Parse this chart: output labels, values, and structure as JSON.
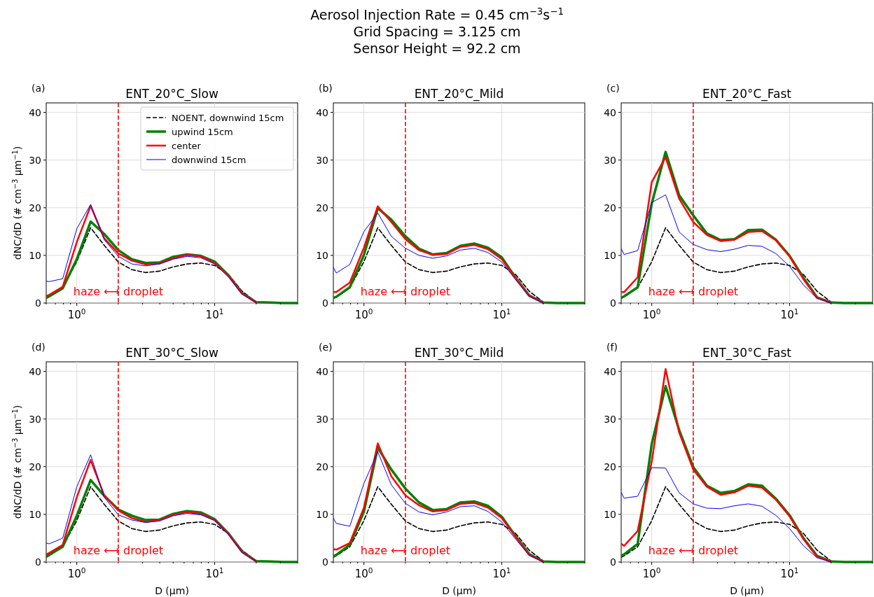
{
  "chart_data": [
    {
      "type": "line",
      "title": "ENT_20°C_Slow",
      "ylabel": "dNC/dD (# cm$^{−3}$ μm$^{−1}$)",
      "annotations": [
        "Aerosol Injection Rate = 0.45 cm$^{−3}$s$^{−1}$",
        "Grid Spacing = 3.125 cm",
        "Sensor Height = 92.2 cm",
        "(a)"
      ],
      "log": "x",
      "grid": true,
      "legend": "top right",
      "xlim": [
        0.6,
        40
      ],
      "ylim": [
        0,
        42
      ],
      "yticks": [
        0,
        10,
        20,
        30,
        40
      ],
      "xticks": [
        {
          "value": 0.6,
          "label": null
        },
        {
          "value": 0.7,
          "label": null
        },
        {
          "value": 0.8,
          "label": null
        },
        {
          "value": 0.9,
          "label": null
        },
        {
          "value": 1,
          "label": "10$^{0}$"
        },
        {
          "value": 2,
          "label": null
        },
        {
          "value": 3,
          "label": null
        },
        {
          "value": 4,
          "label": null
        },
        {
          "value": 5,
          "label": null
        },
        {
          "value": 6,
          "label": null
        },
        {
          "value": 7,
          "label": null
        },
        {
          "value": 8,
          "label": null
        },
        {
          "value": 9,
          "label": null
        },
        {
          "value": 10,
          "label": "10$^{1}$"
        },
        {
          "value": 20,
          "label": null
        },
        {
          "value": 30,
          "label": null
        },
        {
          "value": 40,
          "label": null
        }
      ],
      "ref_lines": [
        {
          "axis": "x",
          "value": 2,
          "label": "haze ⟷ droplet",
          "color": "#ff0000",
          "line_style": "dashed"
        }
      ],
      "x": [
        0.6,
        0.63,
        0.79,
        1,
        1.26,
        1.58,
        2,
        2.51,
        3.16,
        3.98,
        5.01,
        6.31,
        7.94,
        10,
        12.6,
        15.8,
        20,
        25.1,
        31.6,
        39.8
      ],
      "series": [
        {
          "name": "NOENT, downwind 15cm",
          "color": "#000000",
          "line_style": "dashed",
          "values": [
            1.0,
            1.3,
            3.2,
            8.7,
            15.8,
            12.1,
            8.6,
            7.0,
            6.4,
            6.7,
            7.6,
            8.2,
            8.4,
            7.9,
            6.0,
            2.5,
            0.2,
            null,
            null,
            null
          ]
        },
        {
          "name": "upwind 15cm",
          "color": "#008000",
          "values": [
            1.1,
            1.4,
            3.1,
            9.2,
            17.1,
            14.5,
            11.1,
            9.2,
            8.4,
            8.5,
            9.7,
            10.2,
            9.9,
            8.7,
            5.8,
            2.1,
            0.2,
            0.1,
            0,
            0
          ]
        },
        {
          "name": "center",
          "color": "#ff0000",
          "values": [
            1.5,
            1.7,
            3.4,
            12.8,
            20.4,
            13.6,
            10.4,
            8.9,
            8.1,
            8.3,
            9.4,
            10.1,
            9.8,
            8.4,
            5.7,
            2.0,
            0.1,
            null,
            null,
            null
          ]
        },
        {
          "name": "downwind 15cm",
          "color": "#0000ff",
          "values": [
            4.6,
            4.5,
            5.1,
            15.6,
            20.7,
            13.3,
            9.8,
            8.2,
            7.8,
            8.2,
            9.2,
            9.8,
            9.5,
            8.2,
            5.5,
            1.9,
            0.1,
            null,
            null,
            null
          ]
        }
      ]
    },
    {
      "type": "line",
      "title": "ENT_20°C_Mild",
      "annotations": [
        "(b)"
      ],
      "log": "x",
      "grid": true,
      "xlim": [
        0.6,
        40
      ],
      "ylim": [
        0,
        42
      ],
      "yticks": [
        0,
        10,
        20,
        30,
        40
      ],
      "xticks": [
        {
          "value": 0.6,
          "label": null
        },
        {
          "value": 0.7,
          "label": null
        },
        {
          "value": 0.8,
          "label": null
        },
        {
          "value": 0.9,
          "label": null
        },
        {
          "value": 1,
          "label": "10$^{0}$"
        },
        {
          "value": 2,
          "label": null
        },
        {
          "value": 3,
          "label": null
        },
        {
          "value": 4,
          "label": null
        },
        {
          "value": 5,
          "label": null
        },
        {
          "value": 6,
          "label": null
        },
        {
          "value": 7,
          "label": null
        },
        {
          "value": 8,
          "label": null
        },
        {
          "value": 9,
          "label": null
        },
        {
          "value": 10,
          "label": "10$^{1}$"
        },
        {
          "value": 20,
          "label": null
        },
        {
          "value": 30,
          "label": null
        },
        {
          "value": 40,
          "label": null
        }
      ],
      "ref_lines": [
        {
          "axis": "x",
          "value": 2,
          "label": "haze ⟷ droplet",
          "color": "#ff0000",
          "line_style": "dashed"
        }
      ],
      "x": [
        0.6,
        0.63,
        0.79,
        1,
        1.26,
        1.58,
        2,
        2.51,
        3.16,
        3.98,
        5.01,
        6.31,
        7.94,
        10,
        12.6,
        15.8,
        20,
        25.1,
        31.6,
        39.8
      ],
      "series": [
        {
          "color": "#000000",
          "line_style": "dashed",
          "values": [
            1.0,
            1.3,
            3.2,
            8.7,
            15.8,
            12.1,
            8.6,
            7.0,
            6.4,
            6.7,
            7.6,
            8.2,
            8.4,
            7.9,
            6.0,
            2.5,
            0.2,
            null,
            null,
            null
          ]
        },
        {
          "color": "#008000",
          "values": [
            1.1,
            1.3,
            3.3,
            10.1,
            19.9,
            17.5,
            14.0,
            11.4,
            10.2,
            10.5,
            12.0,
            12.5,
            11.6,
            9.6,
            5.3,
            1.6,
            0.1,
            0,
            0,
            0
          ]
        },
        {
          "color": "#ff0000",
          "values": [
            2.3,
            2.3,
            4.3,
            11.6,
            20.3,
            17.0,
            13.4,
            11.1,
            10.1,
            10.3,
            11.8,
            12.2,
            11.3,
            9.2,
            5.2,
            1.5,
            0.1,
            null,
            null,
            null
          ]
        },
        {
          "color": "#0000ff",
          "values": [
            7.5,
            6.3,
            8.1,
            15.0,
            18.9,
            14.0,
            11.5,
            10.0,
            9.4,
            9.9,
            11.1,
            11.5,
            10.6,
            8.6,
            4.9,
            1.4,
            0,
            null,
            null,
            null
          ]
        }
      ]
    },
    {
      "type": "line",
      "title": "ENT_20°C_Fast",
      "annotations": [
        "(c)"
      ],
      "log": "x",
      "grid": true,
      "xlim": [
        0.6,
        40
      ],
      "ylim": [
        0,
        42
      ],
      "yticks": [
        0,
        10,
        20,
        30,
        40
      ],
      "xticks": [
        {
          "value": 0.6,
          "label": null
        },
        {
          "value": 0.7,
          "label": null
        },
        {
          "value": 0.8,
          "label": null
        },
        {
          "value": 0.9,
          "label": null
        },
        {
          "value": 1,
          "label": "10$^{0}$"
        },
        {
          "value": 2,
          "label": null
        },
        {
          "value": 3,
          "label": null
        },
        {
          "value": 4,
          "label": null
        },
        {
          "value": 5,
          "label": null
        },
        {
          "value": 6,
          "label": null
        },
        {
          "value": 7,
          "label": null
        },
        {
          "value": 8,
          "label": null
        },
        {
          "value": 9,
          "label": null
        },
        {
          "value": 10,
          "label": "10$^{1}$"
        },
        {
          "value": 20,
          "label": null
        },
        {
          "value": 30,
          "label": null
        },
        {
          "value": 40,
          "label": null
        }
      ],
      "ref_lines": [
        {
          "axis": "x",
          "value": 2,
          "label": "haze ⟷ droplet",
          "color": "#ff0000",
          "line_style": "dashed"
        }
      ],
      "x": [
        0.6,
        0.63,
        0.79,
        1,
        1.26,
        1.58,
        2,
        2.51,
        3.16,
        3.98,
        5.01,
        6.31,
        7.94,
        10,
        12.6,
        15.8,
        20,
        25.1,
        31.6,
        39.8
      ],
      "series": [
        {
          "color": "#000000",
          "line_style": "dashed",
          "values": [
            1.0,
            1.3,
            3.2,
            8.7,
            15.8,
            12.1,
            8.6,
            7.0,
            6.4,
            6.7,
            7.6,
            8.2,
            8.4,
            7.9,
            6.0,
            2.5,
            0.2,
            null,
            null,
            null
          ]
        },
        {
          "color": "#008000",
          "values": [
            1.1,
            1.4,
            3.3,
            20.9,
            31.7,
            22.6,
            18.4,
            14.6,
            13.2,
            13.4,
            15.3,
            15.4,
            13.3,
            9.9,
            5.3,
            1.2,
            0.1,
            0,
            0,
            0
          ]
        },
        {
          "color": "#ff0000",
          "values": [
            2.3,
            2.3,
            5.4,
            25.4,
            30.6,
            21.9,
            17.0,
            14.3,
            13.0,
            13.3,
            14.9,
            15.1,
            13.2,
            9.8,
            5.0,
            1.1,
            0.1,
            null,
            null,
            null
          ]
        },
        {
          "color": "#0000ff",
          "values": [
            11.4,
            10.2,
            11.0,
            21.1,
            22.7,
            14.9,
            12.3,
            11.2,
            10.8,
            11.3,
            12.1,
            11.9,
            10.4,
            7.7,
            3.8,
            1.0,
            0,
            null,
            null,
            null
          ]
        }
      ]
    },
    {
      "type": "line",
      "title": "ENT_30°C_Slow",
      "ylabel": "dNC/dD (# cm$^{−3}$ μm$^{−1}$)",
      "xlabel": "D (μm)",
      "annotations": [
        "(d)"
      ],
      "log": "x",
      "grid": true,
      "xlim": [
        0.6,
        40
      ],
      "ylim": [
        0,
        42
      ],
      "yticks": [
        0,
        10,
        20,
        30,
        40
      ],
      "xticks": [
        {
          "value": 0.6,
          "label": null
        },
        {
          "value": 0.7,
          "label": null
        },
        {
          "value": 0.8,
          "label": null
        },
        {
          "value": 0.9,
          "label": null
        },
        {
          "value": 1,
          "label": "10$^{0}$"
        },
        {
          "value": 2,
          "label": null
        },
        {
          "value": 3,
          "label": null
        },
        {
          "value": 4,
          "label": null
        },
        {
          "value": 5,
          "label": null
        },
        {
          "value": 6,
          "label": null
        },
        {
          "value": 7,
          "label": null
        },
        {
          "value": 8,
          "label": null
        },
        {
          "value": 9,
          "label": null
        },
        {
          "value": 10,
          "label": "10$^{1}$"
        },
        {
          "value": 20,
          "label": null
        },
        {
          "value": 30,
          "label": null
        },
        {
          "value": 40,
          "label": null
        }
      ],
      "ref_lines": [
        {
          "axis": "x",
          "value": 2,
          "label": "haze ⟷ droplet",
          "color": "#ff0000",
          "line_style": "dashed"
        }
      ],
      "x": [
        0.6,
        0.63,
        0.79,
        1,
        1.26,
        1.58,
        2,
        2.51,
        3.16,
        3.98,
        5.01,
        6.31,
        7.94,
        10,
        12.6,
        15.8,
        20,
        25.1,
        31.6,
        39.8
      ],
      "series": [
        {
          "color": "#000000",
          "line_style": "dashed",
          "values": [
            1.0,
            1.3,
            3.2,
            8.7,
            15.8,
            12.1,
            8.6,
            7.0,
            6.4,
            6.7,
            7.6,
            8.2,
            8.4,
            7.9,
            6.0,
            2.5,
            0.2,
            null,
            null,
            null
          ]
        },
        {
          "color": "#008000",
          "values": [
            1.2,
            1.5,
            3.2,
            9.7,
            17.2,
            13.9,
            11.0,
            9.7,
            8.8,
            8.9,
            10.1,
            10.7,
            10.4,
            9.0,
            6.0,
            2.2,
            0.2,
            0.1,
            0,
            0
          ]
        },
        {
          "color": "#ff0000",
          "values": [
            1.6,
            1.9,
            3.6,
            13.6,
            21.4,
            14.0,
            10.8,
            9.2,
            8.4,
            8.8,
            9.9,
            10.5,
            10.1,
            8.8,
            5.9,
            2.1,
            0.1,
            null,
            null,
            null
          ]
        },
        {
          "color": "#0000ff",
          "values": [
            4.0,
            3.8,
            5.0,
            15.8,
            22.5,
            13.6,
            9.9,
            8.8,
            8.3,
            8.6,
            9.7,
            10.2,
            9.9,
            8.7,
            5.8,
            2.0,
            0.1,
            null,
            null,
            null
          ]
        }
      ]
    },
    {
      "type": "line",
      "title": "ENT_30°C_Mild",
      "xlabel": "D (μm)",
      "annotations": [
        "(e)"
      ],
      "log": "x",
      "grid": true,
      "xlim": [
        0.6,
        40
      ],
      "ylim": [
        0,
        42
      ],
      "yticks": [
        0,
        10,
        20,
        30,
        40
      ],
      "xticks": [
        {
          "value": 0.6,
          "label": null
        },
        {
          "value": 0.7,
          "label": null
        },
        {
          "value": 0.8,
          "label": null
        },
        {
          "value": 0.9,
          "label": null
        },
        {
          "value": 1,
          "label": "10$^{0}$"
        },
        {
          "value": 2,
          "label": null
        },
        {
          "value": 3,
          "label": null
        },
        {
          "value": 4,
          "label": null
        },
        {
          "value": 5,
          "label": null
        },
        {
          "value": 6,
          "label": null
        },
        {
          "value": 7,
          "label": null
        },
        {
          "value": 8,
          "label": null
        },
        {
          "value": 9,
          "label": null
        },
        {
          "value": 10,
          "label": "10$^{1}$"
        },
        {
          "value": 20,
          "label": null
        },
        {
          "value": 30,
          "label": null
        },
        {
          "value": 40,
          "label": null
        }
      ],
      "ref_lines": [
        {
          "axis": "x",
          "value": 2,
          "label": "haze ⟷ droplet",
          "color": "#ff0000",
          "line_style": "dashed"
        }
      ],
      "x": [
        0.6,
        0.63,
        0.79,
        1,
        1.26,
        1.58,
        2,
        2.51,
        3.16,
        3.98,
        5.01,
        6.31,
        7.94,
        10,
        12.6,
        15.8,
        20,
        25.1,
        31.6,
        39.8
      ],
      "series": [
        {
          "color": "#000000",
          "line_style": "dashed",
          "values": [
            1.0,
            1.3,
            3.2,
            8.7,
            15.8,
            12.1,
            8.6,
            7.0,
            6.4,
            6.7,
            7.6,
            8.2,
            8.4,
            7.9,
            6.0,
            2.5,
            0.2,
            null,
            null,
            null
          ]
        },
        {
          "color": "#008000",
          "values": [
            1.2,
            1.5,
            3.6,
            10.6,
            24.0,
            19.4,
            15.4,
            12.5,
            10.9,
            11.1,
            12.5,
            12.7,
            11.8,
            9.5,
            5.4,
            1.7,
            0.1,
            0,
            0,
            0
          ]
        },
        {
          "color": "#ff0000",
          "values": [
            2.7,
            2.6,
            4.0,
            11.4,
            24.9,
            18.0,
            14.0,
            11.9,
            10.6,
            10.9,
            12.2,
            12.4,
            11.4,
            9.2,
            5.3,
            1.5,
            0.1,
            null,
            null,
            null
          ]
        },
        {
          "color": "#0000ff",
          "values": [
            9.2,
            8.1,
            7.5,
            16.5,
            23.1,
            16.2,
            12.3,
            10.5,
            9.9,
            10.5,
            11.6,
            11.8,
            10.6,
            8.4,
            4.8,
            1.4,
            0,
            null,
            null,
            null
          ]
        }
      ]
    },
    {
      "type": "line",
      "title": "ENT_30°C_Fast",
      "xlabel": "D (μm)",
      "annotations": [
        "(f)"
      ],
      "log": "x",
      "grid": true,
      "xlim": [
        0.6,
        40
      ],
      "ylim": [
        0,
        42
      ],
      "yticks": [
        0,
        10,
        20,
        30,
        40
      ],
      "xticks": [
        {
          "value": 0.6,
          "label": null
        },
        {
          "value": 0.7,
          "label": null
        },
        {
          "value": 0.8,
          "label": null
        },
        {
          "value": 0.9,
          "label": null
        },
        {
          "value": 1,
          "label": "10$^{0}$"
        },
        {
          "value": 2,
          "label": null
        },
        {
          "value": 3,
          "label": null
        },
        {
          "value": 4,
          "label": null
        },
        {
          "value": 5,
          "label": null
        },
        {
          "value": 6,
          "label": null
        },
        {
          "value": 7,
          "label": null
        },
        {
          "value": 8,
          "label": null
        },
        {
          "value": 9,
          "label": null
        },
        {
          "value": 10,
          "label": "10$^{1}$"
        },
        {
          "value": 20,
          "label": null
        },
        {
          "value": 30,
          "label": null
        },
        {
          "value": 40,
          "label": null
        }
      ],
      "ref_lines": [
        {
          "axis": "x",
          "value": 2,
          "label": "haze ⟷ droplet",
          "color": "#ff0000",
          "line_style": "dashed"
        }
      ],
      "x": [
        0.6,
        0.63,
        0.79,
        1,
        1.26,
        1.58,
        2,
        2.51,
        3.16,
        3.98,
        5.01,
        6.31,
        7.94,
        10,
        12.6,
        15.8,
        20,
        25.1,
        31.6,
        39.8
      ],
      "series": [
        {
          "color": "#000000",
          "line_style": "dashed",
          "values": [
            1.0,
            1.3,
            3.2,
            8.7,
            15.8,
            12.1,
            8.6,
            7.0,
            6.4,
            6.7,
            7.6,
            8.2,
            8.4,
            7.9,
            6.0,
            2.5,
            0.2,
            null,
            null,
            null
          ]
        },
        {
          "color": "#008000",
          "values": [
            1.3,
            1.6,
            3.8,
            24.8,
            36.9,
            27.7,
            19.9,
            16.0,
            14.5,
            14.9,
            16.3,
            16.0,
            13.3,
            9.8,
            5.0,
            1.3,
            0.1,
            0,
            0,
            0
          ]
        },
        {
          "color": "#ff0000",
          "values": [
            3.8,
            3.4,
            6.5,
            21.1,
            40.5,
            27.2,
            19.4,
            15.8,
            14.1,
            14.6,
            16.0,
            15.6,
            13.1,
            9.6,
            4.8,
            1.1,
            0.1,
            null,
            null,
            null
          ]
        },
        {
          "color": "#0000ff",
          "values": [
            14.6,
            13.4,
            13.8,
            19.8,
            19.7,
            14.5,
            12.2,
            11.3,
            11.2,
            11.8,
            12.2,
            11.7,
            9.8,
            7.0,
            3.4,
            0.9,
            0,
            null,
            null,
            null
          ]
        }
      ]
    }
  ]
}
